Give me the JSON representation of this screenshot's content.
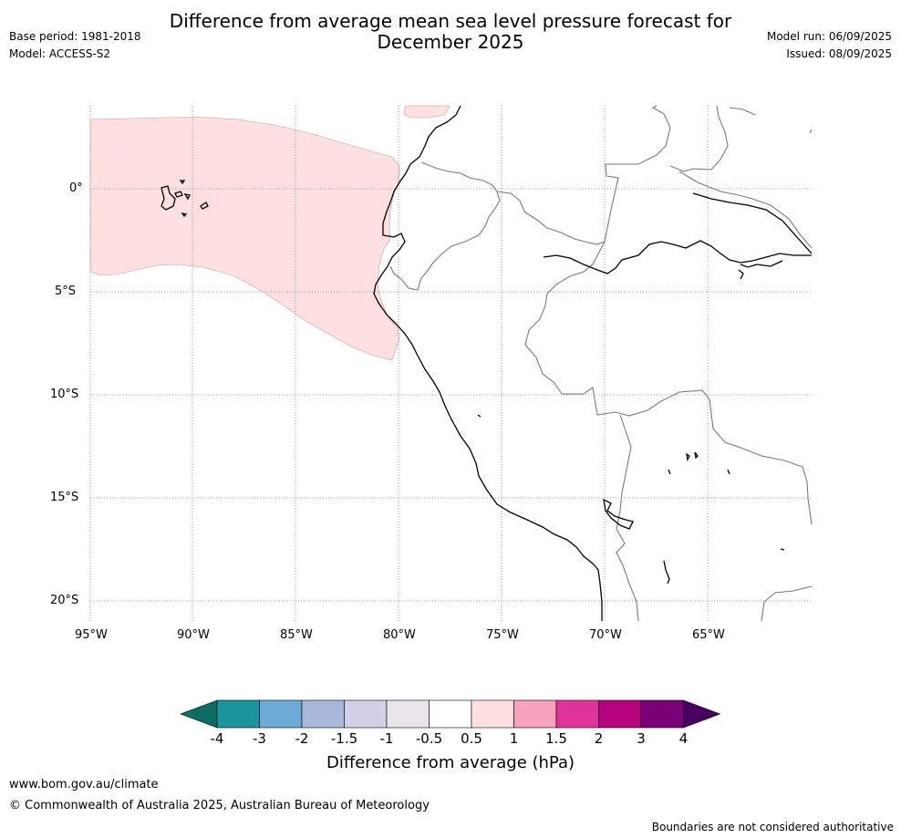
{
  "header": {
    "title_line1": "Difference from average mean sea level pressure forecast for",
    "title_line2": "December 2025",
    "base_period": "Base period: 1981-2018",
    "model": "Model: ACCESS-S2",
    "model_run": "Model run: 06/09/2025",
    "issued": "Issued: 08/09/2025"
  },
  "map": {
    "lat_labels": [
      "0°",
      "5°S",
      "10°S",
      "15°S",
      "20°S"
    ],
    "lon_labels": [
      "95°W",
      "90°W",
      "85°W",
      "80°W",
      "75°W",
      "70°W",
      "65°W"
    ],
    "anomaly_region": {
      "category": "0.5 to 1",
      "color": "#fde0df"
    }
  },
  "colorbar": {
    "title": "Difference from average (hPa)",
    "tick_labels": [
      "-4",
      "-3",
      "-2",
      "-1.5",
      "-1",
      "-0.5",
      "0.5",
      "1",
      "1.5",
      "2",
      "3",
      "4"
    ],
    "colors": [
      "#0b6e60",
      "#1a9599",
      "#6aaad4",
      "#a8b8da",
      "#d0d0e6",
      "#e8e6ea",
      "#ffffff",
      "#fde0df",
      "#f7a1bd",
      "#de3399",
      "#b5047e",
      "#7a0078",
      "#470060"
    ]
  },
  "footer": {
    "website": "www.bom.gov.au/climate",
    "copyright": "© Commonwealth of Australia 2025, Australian Bureau of Meteorology",
    "disclaimer": "Boundaries are not considered authoritative"
  }
}
